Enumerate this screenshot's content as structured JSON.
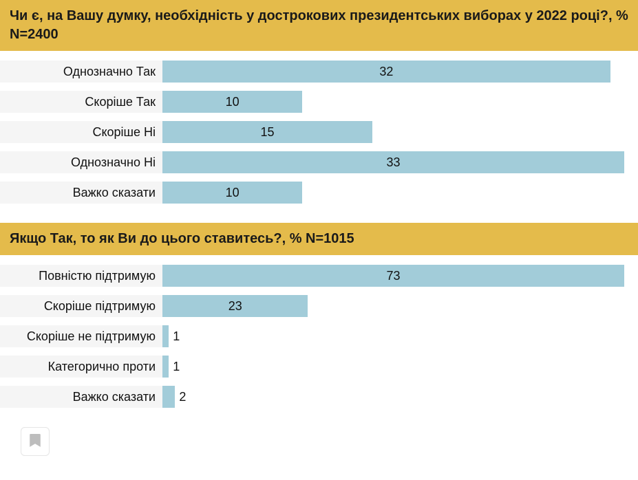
{
  "colors": {
    "header_bg": "#e4bb4b",
    "bar_fill": "#a2ccd9",
    "label_bg": "#f5f5f5",
    "text": "#1a1a1a"
  },
  "charts": [
    {
      "title": "Чи є, на Вашу думку, необхідність у дострокових президентських виборах у 2022 році?, % N=2400",
      "max_value": 33,
      "label_fontsize": 18,
      "title_fontsize": 20,
      "rows": [
        {
          "label": "Однозначно Так",
          "value": 32,
          "value_inside": true
        },
        {
          "label": "Скоріше Так",
          "value": 10,
          "value_inside": true
        },
        {
          "label": "Скоріше Ні",
          "value": 15,
          "value_inside": true
        },
        {
          "label": "Однозначно Ні",
          "value": 33,
          "value_inside": true
        },
        {
          "label": "Важко сказати",
          "value": 10,
          "value_inside": true
        }
      ]
    },
    {
      "title": "Якщо Так, то як Ви до цього ставитесь?, % N=1015",
      "max_value": 73,
      "label_fontsize": 18,
      "title_fontsize": 20,
      "rows": [
        {
          "label": "Повністю підтримую",
          "value": 73,
          "value_inside": true
        },
        {
          "label": "Скоріше підтримую",
          "value": 23,
          "value_inside": true
        },
        {
          "label": "Скоріше не підтримую",
          "value": 1,
          "value_inside": false
        },
        {
          "label": "Категорично проти",
          "value": 1,
          "value_inside": false
        },
        {
          "label": "Важко сказати",
          "value": 2,
          "value_inside": false
        }
      ]
    }
  ],
  "bookmark_icon_name": "bookmark-icon"
}
